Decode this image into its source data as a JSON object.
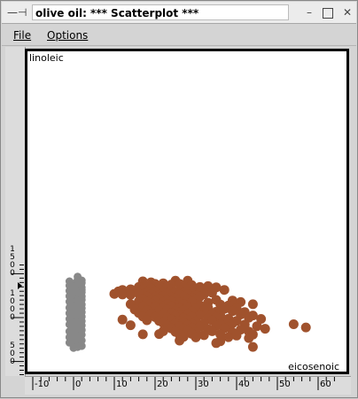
{
  "window": {
    "title": "olive oil: *** Scatterplot ***"
  },
  "menu": {
    "file_label": "File",
    "options_label": "Options"
  },
  "chart_data": {
    "type": "scatter",
    "xlabel": "eicosenoic",
    "ylabel": "linoleic",
    "xlim": [
      -10,
      65
    ],
    "ylim": [
      350,
      1600
    ],
    "x_ticks": [
      "-10",
      "0",
      "10",
      "20",
      "30",
      "40",
      "50",
      "60"
    ],
    "y_ticks": [
      "1500",
      "1000",
      "500"
    ],
    "colors": {
      "group_a": "#888888",
      "group_b": "#a0522d"
    },
    "series": [
      {
        "color": "#888888",
        "points": [
          [
            1,
            1466
          ],
          [
            1,
            1427
          ],
          [
            2,
            1423
          ],
          [
            -1,
            1413
          ],
          [
            1,
            1409
          ],
          [
            2,
            1396
          ],
          [
            0,
            1385
          ],
          [
            1,
            1381
          ],
          [
            -1,
            1365
          ],
          [
            1,
            1358
          ],
          [
            2,
            1344
          ],
          [
            0,
            1337
          ],
          [
            1,
            1330
          ],
          [
            2,
            1316
          ],
          [
            -1,
            1305
          ],
          [
            1,
            1291
          ],
          [
            2,
            1287
          ],
          [
            0,
            1280
          ],
          [
            1,
            1273
          ],
          [
            1,
            1259
          ],
          [
            -1,
            1245
          ],
          [
            2,
            1241
          ],
          [
            0,
            1227
          ],
          [
            1,
            1216
          ],
          [
            2,
            1202
          ],
          [
            1,
            1195
          ],
          [
            -1,
            1181
          ],
          [
            0,
            1170
          ],
          [
            1,
            1159
          ],
          [
            2,
            1149
          ],
          [
            1,
            1138
          ],
          [
            0,
            1127
          ],
          [
            -1,
            1113
          ],
          [
            2,
            1106
          ],
          [
            1,
            1099
          ],
          [
            0,
            1085
          ],
          [
            1,
            1070
          ],
          [
            2,
            1060
          ],
          [
            -1,
            1049
          ],
          [
            1,
            1035
          ],
          [
            0,
            1021
          ],
          [
            2,
            1010
          ],
          [
            1,
            1000
          ],
          [
            -1,
            985
          ],
          [
            1,
            975
          ],
          [
            2,
            961
          ],
          [
            0,
            946
          ],
          [
            1,
            936
          ],
          [
            -1,
            922
          ],
          [
            2,
            911
          ],
          [
            1,
            897
          ],
          [
            0,
            882
          ],
          [
            1,
            868
          ],
          [
            2,
            858
          ],
          [
            -1,
            843
          ],
          [
            1,
            829
          ],
          [
            0,
            815
          ],
          [
            2,
            804
          ],
          [
            1,
            790
          ],
          [
            -1,
            776
          ],
          [
            1,
            765
          ],
          [
            0,
            751
          ],
          [
            2,
            740
          ],
          [
            1,
            726
          ],
          [
            -1,
            715
          ],
          [
            0,
            701
          ],
          [
            1,
            687
          ],
          [
            2,
            676
          ],
          [
            1,
            665
          ],
          [
            0,
            655
          ]
        ]
      },
      {
        "color": "#a0522d",
        "points": [
          [
            17,
            1413
          ],
          [
            19,
            1402
          ],
          [
            22,
            1391
          ],
          [
            25,
            1420
          ],
          [
            28,
            1420
          ],
          [
            20,
            1384
          ],
          [
            24,
            1377
          ],
          [
            18,
            1370
          ],
          [
            26,
            1384
          ],
          [
            29,
            1370
          ],
          [
            21,
            1356
          ],
          [
            16,
            1349
          ],
          [
            23,
            1352
          ],
          [
            27,
            1345
          ],
          [
            31,
            1349
          ],
          [
            33,
            1359
          ],
          [
            35,
            1345
          ],
          [
            12,
            1316
          ],
          [
            14,
            1323
          ],
          [
            17,
            1320
          ],
          [
            19,
            1330
          ],
          [
            21,
            1323
          ],
          [
            24,
            1327
          ],
          [
            26,
            1312
          ],
          [
            28,
            1320
          ],
          [
            30,
            1327
          ],
          [
            32,
            1312
          ],
          [
            37,
            1316
          ],
          [
            11,
            1298
          ],
          [
            13,
            1291
          ],
          [
            15,
            1295
          ],
          [
            18,
            1287
          ],
          [
            20,
            1298
          ],
          [
            22,
            1284
          ],
          [
            25,
            1291
          ],
          [
            27,
            1280
          ],
          [
            29,
            1295
          ],
          [
            31,
            1287
          ],
          [
            34,
            1284
          ],
          [
            10,
            1270
          ],
          [
            12,
            1263
          ],
          [
            14,
            1259
          ],
          [
            16,
            1273
          ],
          [
            19,
            1266
          ],
          [
            21,
            1255
          ],
          [
            23,
            1270
          ],
          [
            26,
            1259
          ],
          [
            28,
            1266
          ],
          [
            30,
            1252
          ],
          [
            32,
            1266
          ],
          [
            18,
            1241
          ],
          [
            20,
            1234
          ],
          [
            22,
            1245
          ],
          [
            24,
            1230
          ],
          [
            27,
            1241
          ],
          [
            29,
            1227
          ],
          [
            31,
            1238
          ],
          [
            17,
            1213
          ],
          [
            19,
            1202
          ],
          [
            21,
            1216
          ],
          [
            23,
            1206
          ],
          [
            25,
            1220
          ],
          [
            28,
            1209
          ],
          [
            30,
            1199
          ],
          [
            35,
            1202
          ],
          [
            39,
            1195
          ],
          [
            16,
            1184
          ],
          [
            18,
            1177
          ],
          [
            20,
            1188
          ],
          [
            22,
            1174
          ],
          [
            24,
            1184
          ],
          [
            26,
            1170
          ],
          [
            29,
            1181
          ],
          [
            33,
            1170
          ],
          [
            41,
            1177
          ],
          [
            14,
            1152
          ],
          [
            19,
            1159
          ],
          [
            21,
            1145
          ],
          [
            23,
            1156
          ],
          [
            25,
            1142
          ],
          [
            27,
            1152
          ],
          [
            31,
            1138
          ],
          [
            36,
            1149
          ],
          [
            38,
            1138
          ],
          [
            44,
            1152
          ],
          [
            17,
            1127
          ],
          [
            20,
            1120
          ],
          [
            22,
            1113
          ],
          [
            24,
            1127
          ],
          [
            26,
            1109
          ],
          [
            28,
            1120
          ],
          [
            30,
            1106
          ],
          [
            33,
            1113
          ],
          [
            37,
            1099
          ],
          [
            40,
            1106
          ],
          [
            15,
            1092
          ],
          [
            18,
            1085
          ],
          [
            21,
            1077
          ],
          [
            23,
            1092
          ],
          [
            25,
            1074
          ],
          [
            27,
            1085
          ],
          [
            29,
            1070
          ],
          [
            32,
            1081
          ],
          [
            35,
            1067
          ],
          [
            39,
            1074
          ],
          [
            42,
            1063
          ],
          [
            16,
            1053
          ],
          [
            19,
            1045
          ],
          [
            22,
            1038
          ],
          [
            24,
            1053
          ],
          [
            26,
            1035
          ],
          [
            28,
            1045
          ],
          [
            31,
            1031
          ],
          [
            34,
            1042
          ],
          [
            36,
            1024
          ],
          [
            41,
            1035
          ],
          [
            44,
            1024
          ],
          [
            17,
            1013
          ],
          [
            20,
            1006
          ],
          [
            23,
            999
          ],
          [
            25,
            1013
          ],
          [
            27,
            995
          ],
          [
            29,
            1006
          ],
          [
            33,
            992
          ],
          [
            35,
            1003
          ],
          [
            38,
            988
          ],
          [
            43,
            999
          ],
          [
            46,
            985
          ],
          [
            12,
            977
          ],
          [
            18,
            970
          ],
          [
            21,
            963
          ],
          [
            24,
            977
          ],
          [
            26,
            959
          ],
          [
            28,
            970
          ],
          [
            30,
            956
          ],
          [
            34,
            966
          ],
          [
            37,
            952
          ],
          [
            40,
            963
          ],
          [
            22,
            938
          ],
          [
            25,
            931
          ],
          [
            27,
            945
          ],
          [
            29,
            927
          ],
          [
            32,
            938
          ],
          [
            36,
            924
          ],
          [
            39,
            934
          ],
          [
            42,
            920
          ],
          [
            14,
            913
          ],
          [
            23,
            906
          ],
          [
            26,
            899
          ],
          [
            28,
            913
          ],
          [
            31,
            895
          ],
          [
            35,
            906
          ],
          [
            38,
            891
          ],
          [
            45,
            902
          ],
          [
            54,
            924
          ],
          [
            24,
            877
          ],
          [
            27,
            870
          ],
          [
            29,
            884
          ],
          [
            33,
            866
          ],
          [
            37,
            877
          ],
          [
            41,
            863
          ],
          [
            47,
            873
          ],
          [
            57,
            888
          ],
          [
            22,
            845
          ],
          [
            25,
            838
          ],
          [
            28,
            852
          ],
          [
            30,
            834
          ],
          [
            34,
            845
          ],
          [
            39,
            831
          ],
          [
            43,
            841
          ],
          [
            17,
            809
          ],
          [
            21,
            813
          ],
          [
            26,
            806
          ],
          [
            29,
            816
          ],
          [
            32,
            799
          ],
          [
            36,
            809
          ],
          [
            40,
            795
          ],
          [
            44,
            806
          ],
          [
            27,
            781
          ],
          [
            30,
            774
          ],
          [
            38,
            777
          ],
          [
            43,
            767
          ],
          [
            26,
            738
          ],
          [
            36,
            731
          ],
          [
            35,
            710
          ],
          [
            44,
            666
          ]
        ]
      }
    ]
  }
}
